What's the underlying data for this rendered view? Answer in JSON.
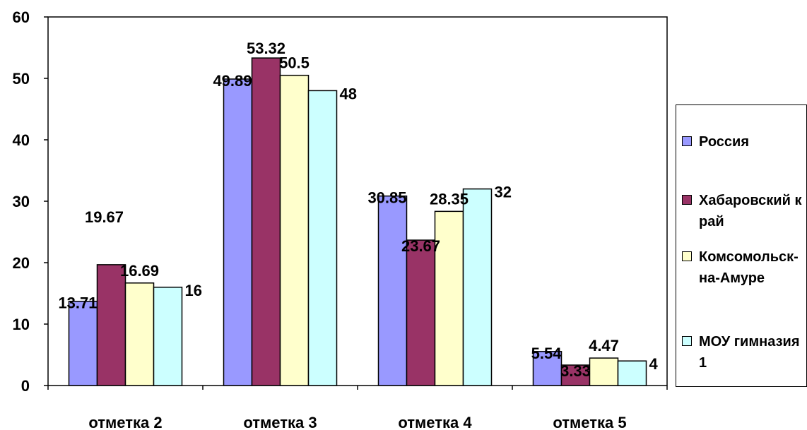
{
  "chart_data": {
    "type": "bar",
    "categories": [
      "отметка 2",
      "отметка 3",
      "отметка 4",
      "отметка 5"
    ],
    "series": [
      {
        "name": "Россия",
        "values": [
          13.71,
          49.89,
          30.85,
          5.54
        ],
        "color": "#9999FF"
      },
      {
        "name": "Хабаровский край",
        "values": [
          19.67,
          53.32,
          23.67,
          3.33
        ],
        "color": "#993366"
      },
      {
        "name": "Комсомольск-на-Амуре",
        "values": [
          16.69,
          50.5,
          28.35,
          4.47
        ],
        "color": "#FFFFCC"
      },
      {
        "name": "МОУ гимназия 1",
        "values": [
          16,
          48,
          32,
          4
        ],
        "color": "#CCFFFF"
      }
    ],
    "data_labels": [
      [
        "13.71",
        "49.89",
        "30.85",
        "5.54"
      ],
      [
        "19.67",
        "53.32",
        "23.67",
        "3.33"
      ],
      [
        "16.69",
        "50.5",
        "28.35",
        "4.47"
      ],
      [
        "16",
        "48",
        "32",
        "4"
      ]
    ],
    "yticks": [
      "0",
      "10",
      "20",
      "30",
      "40",
      "50",
      "60"
    ],
    "ylim": [
      0,
      60
    ],
    "title": "",
    "xlabel": "",
    "ylabel": "",
    "grid": false,
    "legend_position": "right"
  },
  "legend": {
    "items": [
      {
        "label": "Россия",
        "color": "#9999FF"
      },
      {
        "label": "Хабаровский край",
        "color": "#993366"
      },
      {
        "label": "Комсомольск-на-Амуре",
        "color": "#FFFFCC"
      },
      {
        "label": "МОУ гимназия 1",
        "color": "#CCFFFF"
      }
    ]
  }
}
